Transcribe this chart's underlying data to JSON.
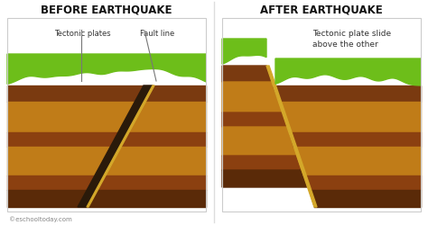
{
  "bg_color": "#ffffff",
  "title_before": "BEFORE EARTHQUAKE",
  "title_after": "AFTER EARTHQUAKE",
  "label_tectonic": "Tectonic plates",
  "label_fault": "Fault line",
  "label_after": "Tectonic plate slide\nabove the other",
  "watermark": "©eschooltoday.com",
  "colors": {
    "grass": "#6dbe1a",
    "soil_top": "#7a3a10",
    "soil_2": "#c07c18",
    "soil_3": "#8b4010",
    "soil_4": "#c07c18",
    "soil_5": "#7a3a10",
    "soil_bottom": "#5a2a08",
    "fault_dark": "#2a1a0a",
    "fault_light": "#d4a82a",
    "border": "#cccccc",
    "title_color": "#111111",
    "label_color": "#333333",
    "annotation_line": "#777777",
    "watermark_color": "#888888",
    "divider": "#dddddd"
  }
}
